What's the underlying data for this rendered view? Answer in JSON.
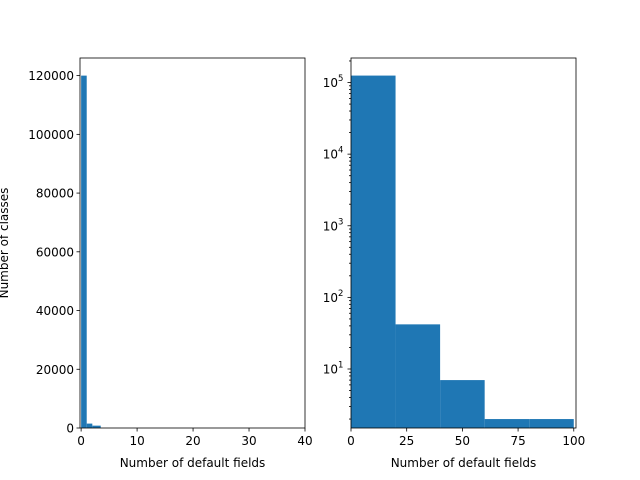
{
  "colors": {
    "bar": "#1f77b4"
  },
  "chart_data": [
    {
      "type": "bar",
      "subtype": "histogram",
      "title": "",
      "xlabel": "Number of default fields",
      "ylabel": "Number of classes",
      "xlim": [
        -0.2,
        40
      ],
      "ylim": [
        0,
        126000
      ],
      "yscale": "linear",
      "xticks": [
        0,
        10,
        20,
        30,
        40
      ],
      "xtick_labels": [
        "0",
        "10",
        "20",
        "30",
        "40"
      ],
      "yticks": [
        0,
        20000,
        40000,
        60000,
        80000,
        100000,
        120000
      ],
      "ytick_labels": [
        "0",
        "20000",
        "40000",
        "60000",
        "80000",
        "100000",
        "120000"
      ],
      "bins": [
        {
          "x0": 0,
          "x1": 1,
          "value": 120000
        },
        {
          "x0": 1,
          "x1": 2,
          "value": 1500
        },
        {
          "x0": 2,
          "x1": 3.5,
          "value": 800
        },
        {
          "x0": 3.5,
          "x1": 4.5,
          "value": 0
        }
      ],
      "grid": false
    },
    {
      "type": "bar",
      "subtype": "histogram",
      "title": "",
      "xlabel": "Number of default fields",
      "ylabel": "",
      "xlim": [
        0,
        101
      ],
      "ylim": [
        1.5,
        220000
      ],
      "yscale": "log",
      "xticks": [
        0,
        25,
        50,
        75,
        100
      ],
      "xtick_labels": [
        "0",
        "25",
        "50",
        "75",
        "100"
      ],
      "yticks": [
        10,
        100,
        1000,
        10000,
        100000
      ],
      "ytick_labels": [
        {
          "base": "10",
          "exp": "1"
        },
        {
          "base": "10",
          "exp": "2"
        },
        {
          "base": "10",
          "exp": "3"
        },
        {
          "base": "10",
          "exp": "4"
        },
        {
          "base": "10",
          "exp": "5"
        }
      ],
      "bins": [
        {
          "x0": 0,
          "x1": 20,
          "value": 125000
        },
        {
          "x0": 20,
          "x1": 40,
          "value": 42
        },
        {
          "x0": 40,
          "x1": 60,
          "value": 7
        },
        {
          "x0": 60,
          "x1": 80,
          "value": 2
        },
        {
          "x0": 80,
          "x1": 100,
          "value": 2
        }
      ],
      "grid": false
    }
  ]
}
